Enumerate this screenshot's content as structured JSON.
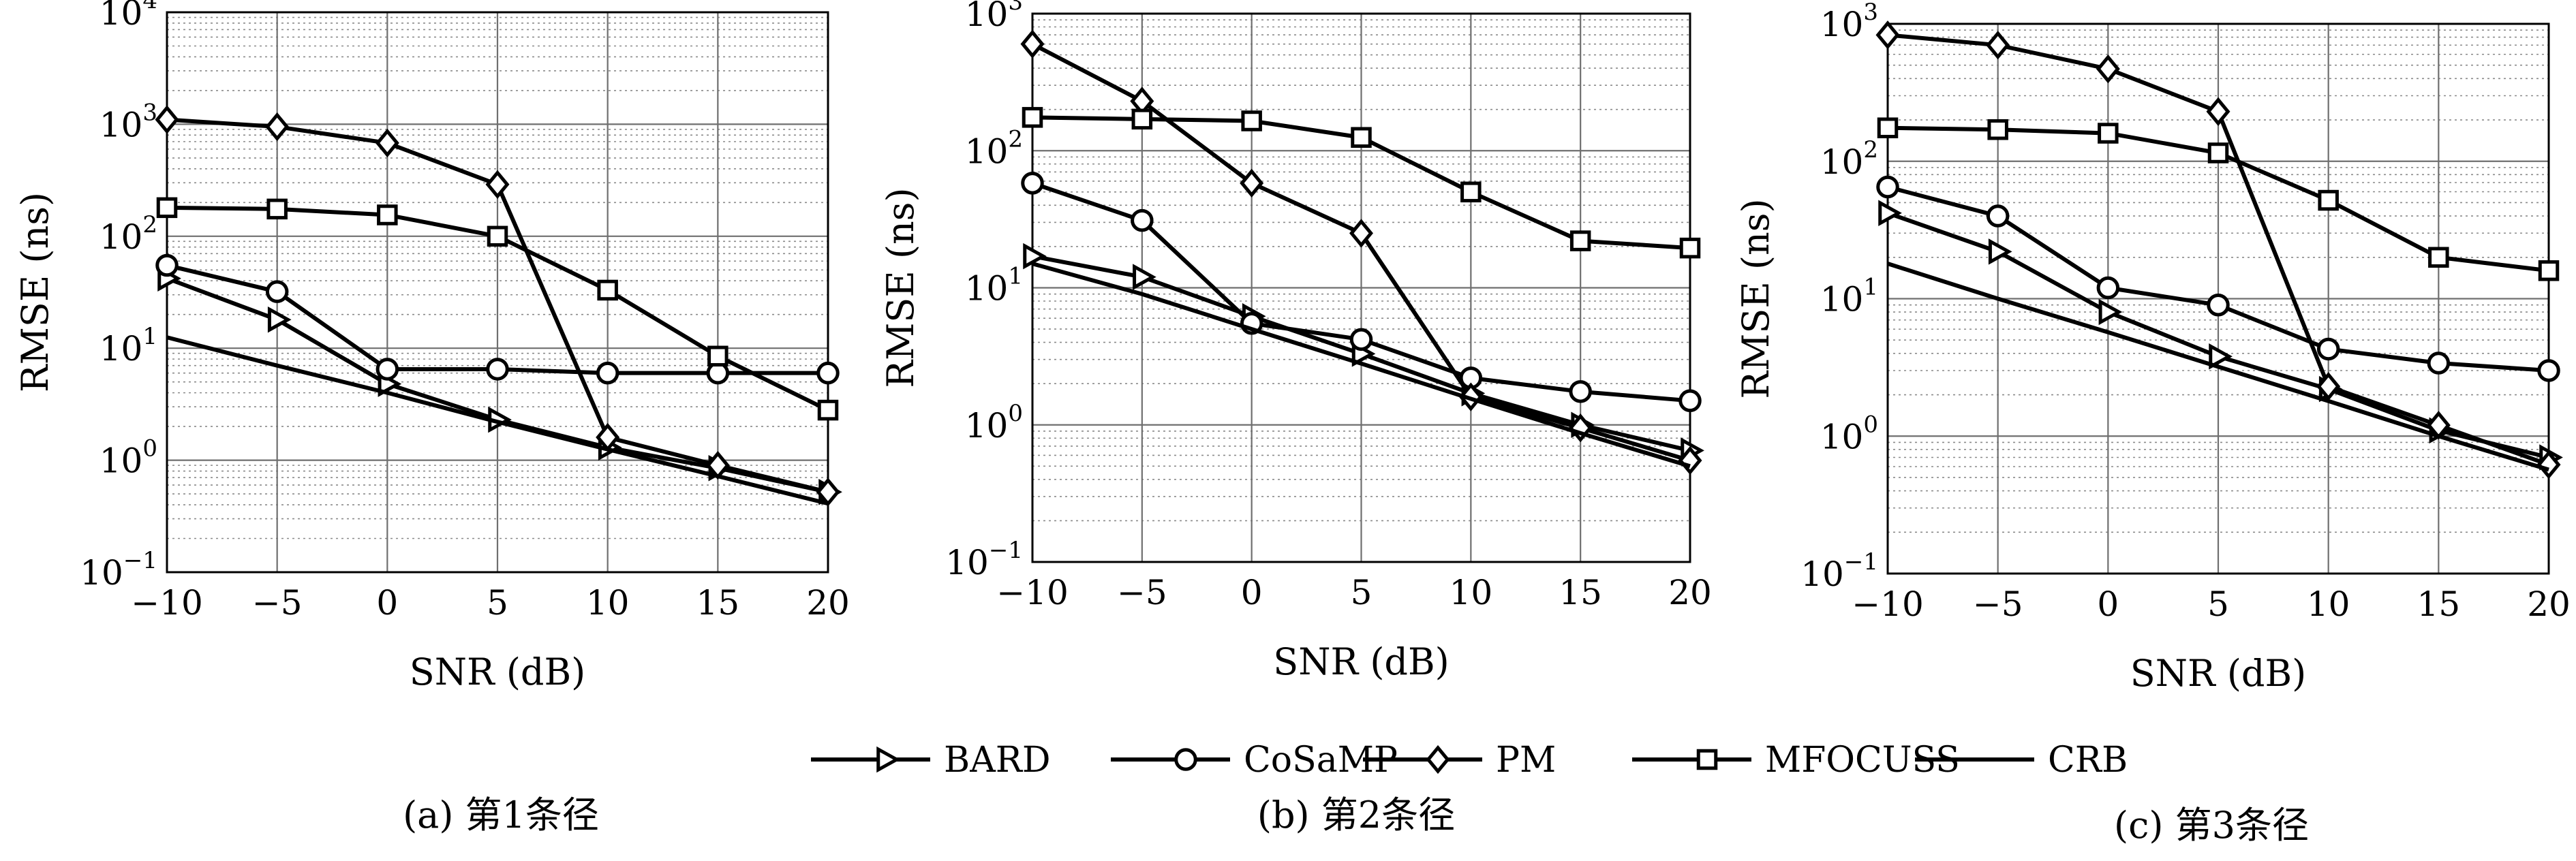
{
  "chart_data": [
    {
      "type": "line",
      "caption": "(a) 第1条径",
      "xlabel": "SNR (dB)",
      "ylabel": "RMSE (ns)",
      "x": [
        -10,
        -5,
        0,
        5,
        10,
        15,
        20
      ],
      "xlim": [
        -10,
        20
      ],
      "ylim": [
        0.1,
        10000
      ],
      "yscale": "log",
      "grid": true,
      "xtick_labels": [
        "−10",
        "−5",
        "0",
        "5",
        "10",
        "15",
        "20"
      ],
      "ytick_labels": [
        {
          "base": "10",
          "exp": "−1"
        },
        {
          "base": "10",
          "exp": "0"
        },
        {
          "base": "10",
          "exp": "1"
        },
        {
          "base": "10",
          "exp": "2"
        },
        {
          "base": "10",
          "exp": "3"
        },
        {
          "base": "10",
          "exp": "4"
        }
      ],
      "series": [
        {
          "name": "BARD",
          "marker": "triangle",
          "values": [
            42,
            18,
            4.8,
            2.3,
            1.3,
            0.85,
            0.52
          ]
        },
        {
          "name": "CoSaMP",
          "marker": "circle",
          "values": [
            55,
            32,
            6.5,
            6.5,
            6.0,
            6.0,
            6.0
          ]
        },
        {
          "name": "PM",
          "marker": "diamond",
          "values": [
            1100,
            950,
            680,
            290,
            1.6,
            0.9,
            0.52
          ]
        },
        {
          "name": "MFOCUSS",
          "marker": "square",
          "values": [
            180,
            175,
            155,
            100,
            33,
            8.5,
            2.8
          ]
        },
        {
          "name": "CRB",
          "marker": "none",
          "values": [
            12.5,
            7.0,
            4.0,
            2.2,
            1.25,
            0.72,
            0.41
          ]
        }
      ]
    },
    {
      "type": "line",
      "caption": "(b) 第2条径",
      "xlabel": "SNR (dB)",
      "ylabel": "RMSE (ns)",
      "x": [
        -10,
        -5,
        0,
        5,
        10,
        15,
        20
      ],
      "xlim": [
        -10,
        20
      ],
      "ylim": [
        0.1,
        1000
      ],
      "yscale": "log",
      "grid": true,
      "xtick_labels": [
        "−10",
        "−5",
        "0",
        "5",
        "10",
        "15",
        "20"
      ],
      "ytick_labels": [
        {
          "base": "10",
          "exp": "−1"
        },
        {
          "base": "10",
          "exp": "0"
        },
        {
          "base": "10",
          "exp": "1"
        },
        {
          "base": "10",
          "exp": "2"
        },
        {
          "base": "10",
          "exp": "3"
        }
      ],
      "series": [
        {
          "name": "BARD",
          "marker": "triangle",
          "values": [
            17,
            12,
            6.2,
            3.3,
            1.7,
            1.0,
            0.65
          ]
        },
        {
          "name": "CoSaMP",
          "marker": "circle",
          "values": [
            58,
            31,
            5.5,
            4.2,
            2.2,
            1.75,
            1.5
          ]
        },
        {
          "name": "PM",
          "marker": "diamond",
          "values": [
            600,
            230,
            58,
            25,
            1.6,
            0.95,
            0.55
          ]
        },
        {
          "name": "MFOCUSS",
          "marker": "square",
          "values": [
            175,
            170,
            165,
            125,
            50,
            22,
            19.5
          ]
        },
        {
          "name": "CRB",
          "marker": "none",
          "values": [
            15,
            9.0,
            5.0,
            2.8,
            1.55,
            0.87,
            0.5
          ]
        }
      ]
    },
    {
      "type": "line",
      "caption": "(c) 第3条径",
      "xlabel": "SNR (dB)",
      "ylabel": "RMSE (ns)",
      "x": [
        -10,
        -5,
        0,
        5,
        10,
        15,
        20
      ],
      "xlim": [
        -10,
        20
      ],
      "ylim": [
        0.1,
        1000
      ],
      "yscale": "log",
      "grid": true,
      "xtick_labels": [
        "−10",
        "−5",
        "0",
        "5",
        "10",
        "15",
        "20"
      ],
      "ytick_labels": [
        {
          "base": "10",
          "exp": "−1"
        },
        {
          "base": "10",
          "exp": "0"
        },
        {
          "base": "10",
          "exp": "1"
        },
        {
          "base": "10",
          "exp": "2"
        },
        {
          "base": "10",
          "exp": "3"
        }
      ],
      "series": [
        {
          "name": "BARD",
          "marker": "triangle",
          "values": [
            42,
            22,
            8.0,
            3.8,
            2.2,
            1.1,
            0.7
          ]
        },
        {
          "name": "CoSaMP",
          "marker": "circle",
          "values": [
            65,
            40,
            12,
            9.0,
            4.3,
            3.4,
            3.0
          ]
        },
        {
          "name": "PM",
          "marker": "diamond",
          "values": [
            830,
            700,
            470,
            230,
            2.3,
            1.2,
            0.62
          ]
        },
        {
          "name": "MFOCUSS",
          "marker": "square",
          "values": [
            175,
            170,
            160,
            115,
            52,
            20,
            16
          ]
        },
        {
          "name": "CRB",
          "marker": "none",
          "values": [
            18,
            10,
            5.7,
            3.2,
            1.8,
            1.0,
            0.57
          ]
        }
      ]
    }
  ],
  "legend": {
    "placement": "bottom-center",
    "items": [
      {
        "label": "BARD",
        "marker": "triangle"
      },
      {
        "label": "CoSaMP",
        "marker": "circle"
      },
      {
        "label": "PM",
        "marker": "diamond"
      },
      {
        "label": "MFOCUSS",
        "marker": "square"
      },
      {
        "label": "CRB",
        "marker": "none"
      }
    ]
  },
  "colors": {
    "line": "#000000",
    "grid": "#8a8a8a",
    "background": "#ffffff"
  }
}
